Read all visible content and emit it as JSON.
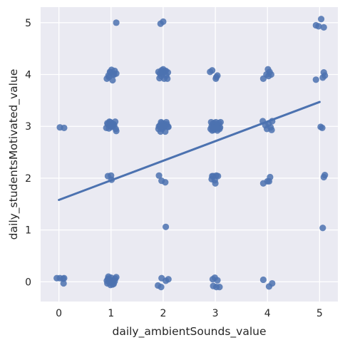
{
  "chart_data": {
    "type": "scatter",
    "title": "",
    "xlabel": "daily_ambientSounds_value",
    "ylabel": "daily_studentsMotivated_value",
    "xlim": [
      -0.35,
      5.35
    ],
    "ylim": [
      -0.38,
      5.3
    ],
    "x_ticks": [
      0,
      1,
      2,
      3,
      4,
      5
    ],
    "y_ticks": [
      0,
      1,
      2,
      3,
      4,
      5
    ],
    "grid": true,
    "background": "#eaeaf2",
    "point_color": "#4c72b0",
    "line_color": "#4c72b0",
    "regression_line": {
      "x": [
        0,
        5
      ],
      "y": [
        1.58,
        3.47
      ]
    },
    "series": [
      {
        "points": [
          [
            -0.04,
            0.07
          ],
          [
            0.02,
            0.07
          ],
          [
            0.08,
            0.06
          ],
          [
            0.1,
            0.07
          ],
          [
            0.09,
            -0.03
          ],
          [
            0.02,
            2.98
          ],
          [
            0.1,
            2.97
          ],
          [
            0.92,
            0.02
          ],
          [
            0.96,
            0.05
          ],
          [
            1.0,
            0.08
          ],
          [
            1.04,
            0.03
          ],
          [
            1.08,
            0.06
          ],
          [
            0.93,
            -0.03
          ],
          [
            0.97,
            -0.01
          ],
          [
            1.01,
            0.0
          ],
          [
            1.05,
            -0.04
          ],
          [
            1.1,
            0.09
          ],
          [
            0.95,
            0.1
          ],
          [
            1.03,
            -0.05
          ],
          [
            1.07,
            0.01
          ],
          [
            0.99,
            -0.06
          ],
          [
            0.94,
            0.06
          ],
          [
            0.94,
            2.04
          ],
          [
            1.0,
            2.05
          ],
          [
            1.01,
            1.97
          ],
          [
            0.91,
            2.97
          ],
          [
            0.94,
            3.04
          ],
          [
            0.97,
            3.09
          ],
          [
            1.0,
            2.99
          ],
          [
            1.03,
            3.05
          ],
          [
            1.06,
            3.02
          ],
          [
            1.09,
            2.95
          ],
          [
            0.93,
            3.06
          ],
          [
            0.96,
            2.96
          ],
          [
            0.99,
            3.08
          ],
          [
            1.02,
            3.0
          ],
          [
            1.05,
            3.04
          ],
          [
            1.08,
            3.09
          ],
          [
            0.98,
            3.02
          ],
          [
            1.1,
            2.91
          ],
          [
            0.92,
            3.92
          ],
          [
            0.95,
            3.98
          ],
          [
            0.98,
            4.05
          ],
          [
            1.01,
            4.09
          ],
          [
            1.04,
            4.0
          ],
          [
            1.07,
            4.07
          ],
          [
            1.1,
            4.02
          ],
          [
            0.96,
            3.95
          ],
          [
            1.03,
            3.89
          ],
          [
            0.99,
            4.04
          ],
          [
            1.06,
            4.0
          ],
          [
            1.1,
            5.0
          ],
          [
            1.9,
            -0.07
          ],
          [
            1.97,
            0.07
          ],
          [
            2.05,
            0.02
          ],
          [
            2.1,
            0.05
          ],
          [
            1.96,
            -0.1
          ],
          [
            1.92,
            2.05
          ],
          [
            1.97,
            1.95
          ],
          [
            2.04,
            1.92
          ],
          [
            2.05,
            1.06
          ],
          [
            1.91,
            2.95
          ],
          [
            1.94,
            3.02
          ],
          [
            1.97,
            3.06
          ],
          [
            2.0,
            2.98
          ],
          [
            2.03,
            3.03
          ],
          [
            2.06,
            3.08
          ],
          [
            2.09,
            2.99
          ],
          [
            1.92,
            3.0
          ],
          [
            1.95,
            2.9
          ],
          [
            1.98,
            2.95
          ],
          [
            2.01,
            3.05
          ],
          [
            2.04,
            2.9
          ],
          [
            2.07,
            3.04
          ],
          [
            2.1,
            2.99
          ],
          [
            1.96,
            3.08
          ],
          [
            2.02,
            2.99
          ],
          [
            1.91,
            4.05
          ],
          [
            1.94,
            4.02
          ],
          [
            1.97,
            4.08
          ],
          [
            2.0,
            4.1
          ],
          [
            2.03,
            4.06
          ],
          [
            2.06,
            3.98
          ],
          [
            2.09,
            4.04
          ],
          [
            1.93,
            3.93
          ],
          [
            1.96,
            3.97
          ],
          [
            1.99,
            4.02
          ],
          [
            2.02,
            3.92
          ],
          [
            2.05,
            4.07
          ],
          [
            2.08,
            3.92
          ],
          [
            1.98,
            4.05
          ],
          [
            1.95,
            4.98
          ],
          [
            2.0,
            5.02
          ],
          [
            2.95,
            0.05
          ],
          [
            2.99,
            0.08
          ],
          [
            3.02,
            -0.1
          ],
          [
            3.04,
            0.03
          ],
          [
            3.08,
            -0.1
          ],
          [
            2.96,
            -0.08
          ],
          [
            2.93,
            1.98
          ],
          [
            2.96,
            2.04
          ],
          [
            2.99,
            1.96
          ],
          [
            3.02,
            2.05
          ],
          [
            3.05,
            2.04
          ],
          [
            3.0,
            1.9
          ],
          [
            2.94,
            2.04
          ],
          [
            2.91,
            2.95
          ],
          [
            2.93,
            3.0
          ],
          [
            2.95,
            3.05
          ],
          [
            2.97,
            2.93
          ],
          [
            2.99,
            3.02
          ],
          [
            3.01,
            3.08
          ],
          [
            3.03,
            2.96
          ],
          [
            3.05,
            3.01
          ],
          [
            3.07,
            3.06
          ],
          [
            3.09,
            2.98
          ],
          [
            2.92,
            3.08
          ],
          [
            2.94,
            2.92
          ],
          [
            2.96,
            3.0
          ],
          [
            2.98,
            3.06
          ],
          [
            3.0,
            2.95
          ],
          [
            3.02,
            3.03
          ],
          [
            3.04,
            2.92
          ],
          [
            3.06,
            3.02
          ],
          [
            3.08,
            2.95
          ],
          [
            3.1,
            3.08
          ],
          [
            2.97,
            2.97
          ],
          [
            3.01,
            2.98
          ],
          [
            3.05,
            2.96
          ],
          [
            2.9,
            4.05
          ],
          [
            2.94,
            4.08
          ],
          [
            3.02,
            3.95
          ],
          [
            3.04,
            3.98
          ],
          [
            3.01,
            3.92
          ],
          [
            3.92,
            0.04
          ],
          [
            4.03,
            -0.09
          ],
          [
            4.09,
            -0.03
          ],
          [
            3.92,
            1.9
          ],
          [
            4.0,
            1.94
          ],
          [
            4.05,
            2.02
          ],
          [
            4.03,
            1.94
          ],
          [
            3.91,
            3.1
          ],
          [
            3.96,
            3.02
          ],
          [
            3.99,
            2.95
          ],
          [
            4.02,
            3.05
          ],
          [
            4.06,
            2.98
          ],
          [
            4.09,
            3.1
          ],
          [
            4.08,
            2.93
          ],
          [
            3.92,
            3.92
          ],
          [
            3.98,
            4.0
          ],
          [
            4.01,
            4.1
          ],
          [
            4.04,
            4.05
          ],
          [
            4.07,
            4.0
          ],
          [
            4.02,
            3.97
          ],
          [
            4.93,
            3.9
          ],
          [
            5.02,
            2.99
          ],
          [
            5.05,
            2.97
          ],
          [
            5.08,
            2.02
          ],
          [
            5.1,
            2.06
          ],
          [
            5.06,
            1.04
          ],
          [
            5.08,
            4.04
          ],
          [
            5.06,
            3.94
          ],
          [
            5.1,
            3.98
          ],
          [
            4.93,
            4.95
          ],
          [
            4.98,
            4.93
          ],
          [
            5.03,
            5.07
          ],
          [
            5.08,
            4.91
          ]
        ]
      }
    ]
  }
}
